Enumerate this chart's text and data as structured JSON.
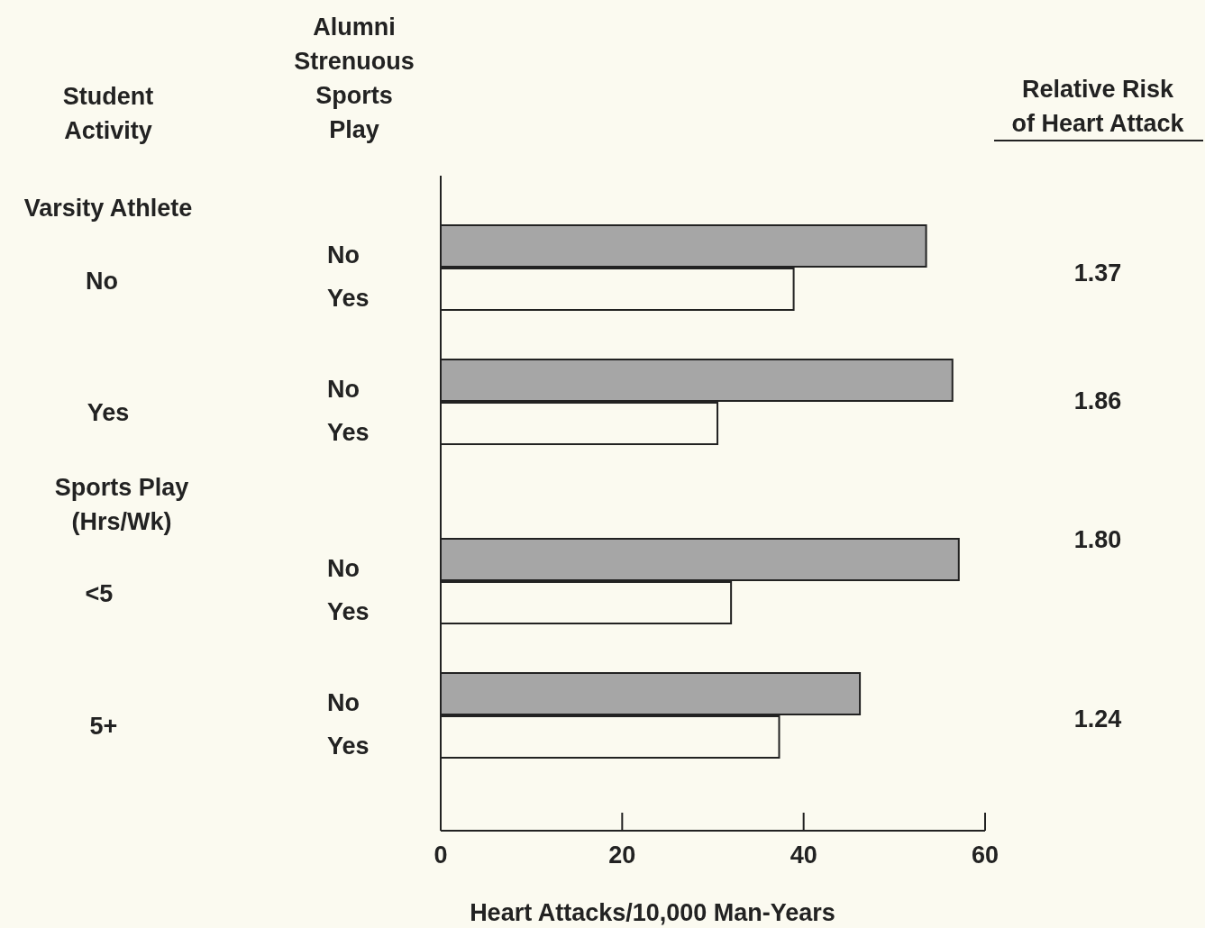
{
  "chart_data": {
    "type": "bar",
    "orientation": "horizontal",
    "ylabel": "Alumni Strenuous Sports Play",
    "xlabel": "Heart Attacks/10,000 Man-Years",
    "categories": [
      "No",
      "Yes",
      "No",
      "Yes",
      "No",
      "Yes",
      "No",
      "Yes"
    ],
    "values": [
      53.5,
      38.9,
      56.4,
      30.5,
      57.1,
      32.0,
      46.2,
      37.3
    ],
    "colors": [
      "#a6a6a6",
      "#fbfaf0",
      "#a6a6a6",
      "#fbfaf0",
      "#a6a6a6",
      "#fbfaf0",
      "#a6a6a6",
      "#fbfaf0"
    ],
    "xlim": [
      0,
      60
    ],
    "xticks": [
      0,
      20,
      40,
      60
    ],
    "grid": false,
    "annotations": [
      "Student Activity",
      "Relative Risk of Heart Attack",
      "Varsity Athlete",
      "No",
      "Yes",
      "Sports Play (Hrs/Wk)",
      "<5",
      "5+",
      "1.37",
      "1.86",
      "1.80",
      "1.24"
    ]
  }
}
